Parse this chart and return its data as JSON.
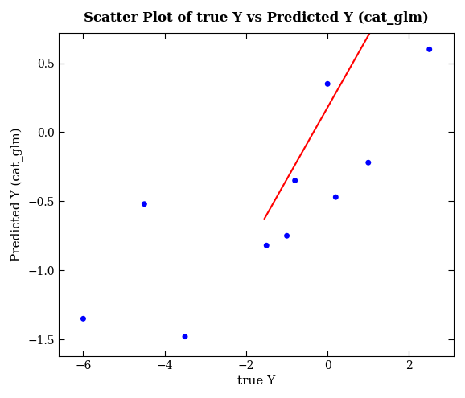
{
  "title": "Scatter Plot of true Y vs Predicted Y (cat_glm)",
  "xlabel": "true Y",
  "ylabel": "Predicted Y (cat_glm)",
  "scatter_x": [
    -6.0,
    -4.5,
    -3.5,
    -1.5,
    -1.0,
    -0.8,
    0.0,
    0.2,
    1.0,
    2.5
  ],
  "scatter_y": [
    -1.35,
    -0.52,
    -1.48,
    -0.82,
    -0.75,
    -0.35,
    0.35,
    -0.47,
    -0.22,
    0.6
  ],
  "dot_color": "#0000FF",
  "dot_size": 25,
  "line_color": "#FF0000",
  "line_x_start": -1.55,
  "line_x_end": 2.6,
  "line_slope": 0.52,
  "line_intercept": 0.18,
  "xlim": [
    -6.6,
    3.1
  ],
  "ylim": [
    -1.62,
    0.72
  ],
  "xticks": [
    -6,
    -4,
    -2,
    0,
    2
  ],
  "yticks": [
    -1.5,
    -1.0,
    -0.5,
    0.0,
    0.5
  ],
  "background_color": "#ffffff",
  "plot_bg_color": "#ffffff",
  "title_fontsize": 12,
  "label_fontsize": 11,
  "tick_fontsize": 10
}
